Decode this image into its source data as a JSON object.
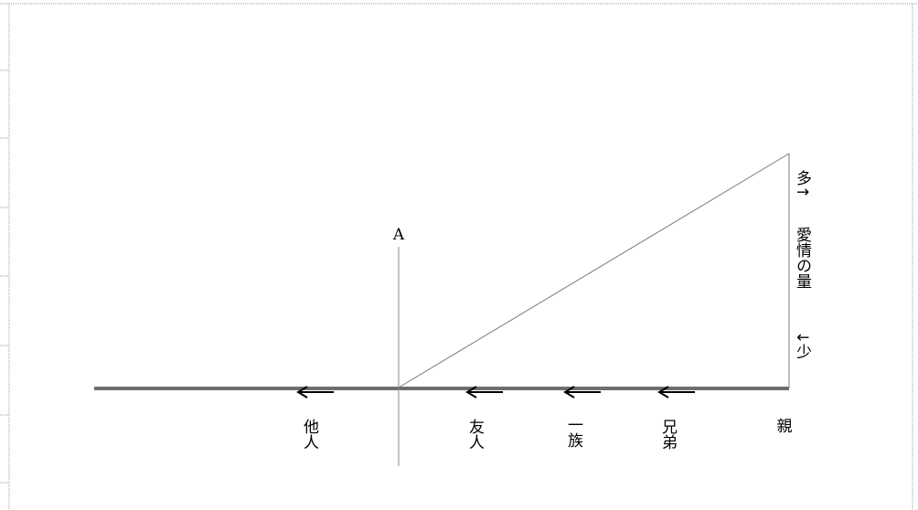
{
  "diagram": {
    "axis_label": "A",
    "scale_top": "多↑",
    "scale_middle": "愛情の量",
    "scale_bottom": "↓少",
    "labels": {
      "oya": "親",
      "kyodai": "兄弟",
      "ichizoku": "一族",
      "yujin": "友人",
      "tanin": "他人"
    }
  },
  "colors": {
    "baseline": "#6e6e6e",
    "lines": "#777777",
    "dotted_border": "#9a9a9a",
    "text": "#000000"
  }
}
